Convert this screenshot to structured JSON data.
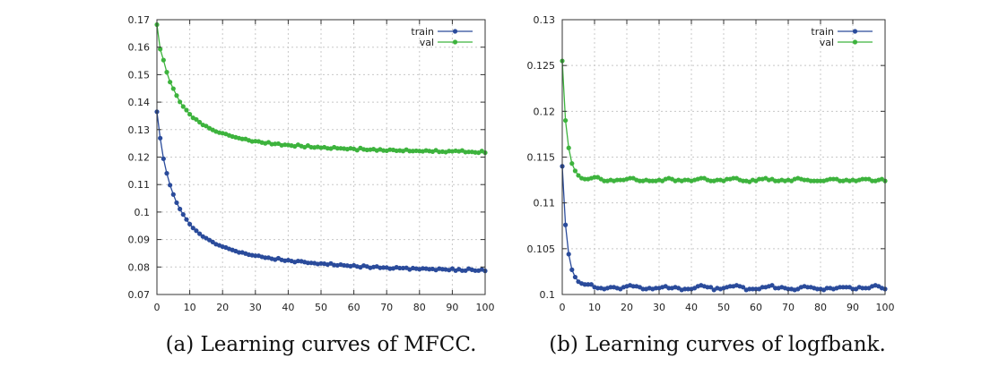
{
  "colors": {
    "train": "#2a4b9b",
    "val": "#3db33d"
  },
  "chart_data": [
    {
      "type": "line",
      "title": "",
      "caption": "(a) Learning curves of MFCC.",
      "xlabel": "",
      "ylabel": "",
      "xlim": [
        0,
        100
      ],
      "ylim": [
        0.07,
        0.17
      ],
      "xticks": [
        0,
        10,
        20,
        30,
        40,
        50,
        60,
        70,
        80,
        90,
        100
      ],
      "xtick_labels": [
        "0",
        "10",
        "20",
        "30",
        "40",
        "50",
        "60",
        "70",
        "80",
        "90",
        "100"
      ],
      "yticks": [
        0.07,
        0.08,
        0.09,
        0.1,
        0.11,
        0.12,
        0.13,
        0.14,
        0.15,
        0.16,
        0.17
      ],
      "ytick_labels": [
        "0.07",
        "0.08",
        "0.09",
        "0.1",
        "0.11",
        "0.12",
        "0.13",
        "0.14",
        "0.15",
        "0.16",
        "0.17"
      ],
      "grid": true,
      "legend_position": "top-right",
      "series": [
        {
          "name": "train",
          "x": [
            0,
            1,
            2,
            3,
            4,
            5,
            6,
            7,
            8,
            9,
            10,
            11,
            12,
            13,
            14,
            15,
            16,
            17,
            18,
            19,
            20,
            21,
            22,
            23,
            24,
            25,
            26,
            27,
            28,
            29,
            30,
            31,
            32,
            33,
            34,
            35,
            36,
            37,
            38,
            39,
            40,
            41,
            42,
            43,
            44,
            45,
            46,
            47,
            48,
            49,
            50,
            51,
            52,
            53,
            54,
            55,
            56,
            57,
            58,
            59,
            60,
            61,
            62,
            63,
            64,
            65,
            66,
            67,
            68,
            69,
            70,
            71,
            72,
            73,
            74,
            75,
            76,
            77,
            78,
            79,
            80,
            81,
            82,
            83,
            84,
            85,
            86,
            87,
            88,
            89,
            90,
            91,
            92,
            93,
            94,
            95,
            96,
            97,
            98,
            99,
            100
          ],
          "values": [
            0.1365,
            0.1269,
            0.1194,
            0.1141,
            0.1098,
            0.1064,
            0.1034,
            0.1011,
            0.0991,
            0.0973,
            0.0956,
            0.0942,
            0.0932,
            0.0921,
            0.0911,
            0.0905,
            0.0898,
            0.0891,
            0.0883,
            0.0879,
            0.0874,
            0.0871,
            0.0866,
            0.0862,
            0.0858,
            0.0853,
            0.0853,
            0.0849,
            0.0845,
            0.0843,
            0.0841,
            0.0841,
            0.0837,
            0.0834,
            0.0834,
            0.083,
            0.0827,
            0.0832,
            0.0826,
            0.0823,
            0.0825,
            0.0822,
            0.0818,
            0.0822,
            0.0821,
            0.0818,
            0.0815,
            0.0815,
            0.0814,
            0.0811,
            0.0813,
            0.0812,
            0.0809,
            0.0813,
            0.0807,
            0.0806,
            0.0809,
            0.0806,
            0.0805,
            0.0803,
            0.0806,
            0.0802,
            0.0799,
            0.0805,
            0.0802,
            0.0797,
            0.08,
            0.0802,
            0.0797,
            0.0798,
            0.0798,
            0.0794,
            0.0795,
            0.0799,
            0.0796,
            0.0796,
            0.0797,
            0.0791,
            0.0796,
            0.0794,
            0.0792,
            0.0795,
            0.0794,
            0.0792,
            0.0793,
            0.0789,
            0.0794,
            0.0792,
            0.0791,
            0.0789,
            0.0794,
            0.0787,
            0.0792,
            0.0787,
            0.0787,
            0.0794,
            0.079,
            0.0787,
            0.0787,
            0.0791,
            0.0786
          ]
        },
        {
          "name": "val",
          "x": [
            0,
            1,
            2,
            3,
            4,
            5,
            6,
            7,
            8,
            9,
            10,
            11,
            12,
            13,
            14,
            15,
            16,
            17,
            18,
            19,
            20,
            21,
            22,
            23,
            24,
            25,
            26,
            27,
            28,
            29,
            30,
            31,
            32,
            33,
            34,
            35,
            36,
            37,
            38,
            39,
            40,
            41,
            42,
            43,
            44,
            45,
            46,
            47,
            48,
            49,
            50,
            51,
            52,
            53,
            54,
            55,
            56,
            57,
            58,
            59,
            60,
            61,
            62,
            63,
            64,
            65,
            66,
            67,
            68,
            69,
            70,
            71,
            72,
            73,
            74,
            75,
            76,
            77,
            78,
            79,
            80,
            81,
            82,
            83,
            84,
            85,
            86,
            87,
            88,
            89,
            90,
            91,
            92,
            93,
            94,
            95,
            96,
            97,
            98,
            99,
            100
          ],
          "values": [
            0.1682,
            0.1593,
            0.1553,
            0.1509,
            0.1473,
            0.1449,
            0.1424,
            0.1401,
            0.1384,
            0.1371,
            0.1356,
            0.1343,
            0.1337,
            0.1327,
            0.1317,
            0.1313,
            0.1305,
            0.1299,
            0.1293,
            0.1289,
            0.1287,
            0.1284,
            0.1279,
            0.1275,
            0.1272,
            0.1269,
            0.1266,
            0.1266,
            0.1261,
            0.1257,
            0.1258,
            0.1257,
            0.1253,
            0.125,
            0.1254,
            0.1247,
            0.1248,
            0.1249,
            0.1243,
            0.1245,
            0.1244,
            0.1242,
            0.1239,
            0.1245,
            0.124,
            0.1236,
            0.1242,
            0.1236,
            0.1235,
            0.1237,
            0.1234,
            0.1236,
            0.1232,
            0.1231,
            0.1236,
            0.1232,
            0.1232,
            0.1231,
            0.1229,
            0.1232,
            0.123,
            0.1225,
            0.1233,
            0.1228,
            0.1226,
            0.1227,
            0.1229,
            0.1224,
            0.1228,
            0.1224,
            0.1223,
            0.1227,
            0.1226,
            0.1223,
            0.1224,
            0.1222,
            0.1227,
            0.1222,
            0.1222,
            0.1223,
            0.1222,
            0.1221,
            0.1224,
            0.1222,
            0.122,
            0.1225,
            0.1219,
            0.122,
            0.1218,
            0.1222,
            0.1221,
            0.1223,
            0.1221,
            0.1224,
            0.1218,
            0.1219,
            0.1219,
            0.1217,
            0.1216,
            0.1222,
            0.1216
          ]
        }
      ]
    },
    {
      "type": "line",
      "title": "",
      "caption": "(b) Learning curves of logfbank.",
      "xlabel": "",
      "ylabel": "",
      "xlim": [
        0,
        100
      ],
      "ylim": [
        0.1,
        0.13
      ],
      "xticks": [
        0,
        10,
        20,
        30,
        40,
        50,
        60,
        70,
        80,
        90,
        100
      ],
      "xtick_labels": [
        "0",
        "10",
        "20",
        "30",
        "40",
        "50",
        "60",
        "70",
        "80",
        "90",
        "100"
      ],
      "yticks": [
        0.1,
        0.105,
        0.11,
        0.115,
        0.12,
        0.125,
        0.13
      ],
      "ytick_labels": [
        "0.1",
        "0.105",
        "0.11",
        "0.115",
        "0.12",
        "0.125",
        "0.13"
      ],
      "grid": true,
      "legend_position": "top-right",
      "series": [
        {
          "name": "train",
          "x": [
            0,
            1,
            2,
            3,
            4,
            5,
            6,
            7,
            8,
            9,
            10,
            11,
            12,
            13,
            14,
            15,
            16,
            17,
            18,
            19,
            20,
            21,
            22,
            23,
            24,
            25,
            26,
            27,
            28,
            29,
            30,
            31,
            32,
            33,
            34,
            35,
            36,
            37,
            38,
            39,
            40,
            41,
            42,
            43,
            44,
            45,
            46,
            47,
            48,
            49,
            50,
            51,
            52,
            53,
            54,
            55,
            56,
            57,
            58,
            59,
            60,
            61,
            62,
            63,
            64,
            65,
            66,
            67,
            68,
            69,
            70,
            71,
            72,
            73,
            74,
            75,
            76,
            77,
            78,
            79,
            80,
            81,
            82,
            83,
            84,
            85,
            86,
            87,
            88,
            89,
            90,
            91,
            92,
            93,
            94,
            95,
            96,
            97,
            98,
            99,
            100
          ],
          "values": [
            0.114,
            0.1076,
            0.1044,
            0.1027,
            0.1019,
            0.1014,
            0.1012,
            0.1011,
            0.1011,
            0.1011,
            0.1008,
            0.1007,
            0.1007,
            0.1006,
            0.1007,
            0.1008,
            0.1008,
            0.1007,
            0.1006,
            0.1008,
            0.1009,
            0.101,
            0.1009,
            0.1009,
            0.1008,
            0.1006,
            0.1006,
            0.1007,
            0.1006,
            0.1007,
            0.1007,
            0.1008,
            0.1009,
            0.1007,
            0.1007,
            0.1008,
            0.1007,
            0.1005,
            0.1006,
            0.1006,
            0.1006,
            0.1007,
            0.1009,
            0.101,
            0.1009,
            0.1008,
            0.1008,
            0.1005,
            0.1007,
            0.1006,
            0.1007,
            0.1008,
            0.1009,
            0.1009,
            0.101,
            0.1009,
            0.1008,
            0.1005,
            0.1006,
            0.1006,
            0.1006,
            0.1006,
            0.1008,
            0.1008,
            0.1009,
            0.101,
            0.1007,
            0.1007,
            0.1008,
            0.1007,
            0.1006,
            0.1006,
            0.1005,
            0.1006,
            0.1008,
            0.1009,
            0.1008,
            0.1008,
            0.1007,
            0.1006,
            0.1006,
            0.1005,
            0.1007,
            0.1007,
            0.1006,
            0.1007,
            0.1008,
            0.1008,
            0.1008,
            0.1008,
            0.1006,
            0.1006,
            0.1008,
            0.1007,
            0.1007,
            0.1007,
            0.1009,
            0.101,
            0.1009,
            0.1007,
            0.1006
          ]
        },
        {
          "name": "val",
          "x": [
            0,
            1,
            2,
            3,
            4,
            5,
            6,
            7,
            8,
            9,
            10,
            11,
            12,
            13,
            14,
            15,
            16,
            17,
            18,
            19,
            20,
            21,
            22,
            23,
            24,
            25,
            26,
            27,
            28,
            29,
            30,
            31,
            32,
            33,
            34,
            35,
            36,
            37,
            38,
            39,
            40,
            41,
            42,
            43,
            44,
            45,
            46,
            47,
            48,
            49,
            50,
            51,
            52,
            53,
            54,
            55,
            56,
            57,
            58,
            59,
            60,
            61,
            62,
            63,
            64,
            65,
            66,
            67,
            68,
            69,
            70,
            71,
            72,
            73,
            74,
            75,
            76,
            77,
            78,
            79,
            80,
            81,
            82,
            83,
            84,
            85,
            86,
            87,
            88,
            89,
            90,
            91,
            92,
            93,
            94,
            95,
            96,
            97,
            98,
            99,
            100
          ],
          "values": [
            0.1255,
            0.119,
            0.116,
            0.1143,
            0.1135,
            0.113,
            0.1127,
            0.1126,
            0.1126,
            0.1127,
            0.1128,
            0.1128,
            0.1126,
            0.1124,
            0.1124,
            0.1125,
            0.1124,
            0.1125,
            0.1125,
            0.1125,
            0.1126,
            0.1127,
            0.1127,
            0.1125,
            0.1124,
            0.1124,
            0.1125,
            0.1124,
            0.1124,
            0.1124,
            0.1125,
            0.1124,
            0.1126,
            0.1127,
            0.1126,
            0.1124,
            0.1125,
            0.1124,
            0.1125,
            0.1125,
            0.1124,
            0.1125,
            0.1126,
            0.1127,
            0.1127,
            0.1125,
            0.1124,
            0.1124,
            0.1125,
            0.1125,
            0.1124,
            0.1126,
            0.1126,
            0.1127,
            0.1127,
            0.1125,
            0.1124,
            0.1124,
            0.1123,
            0.1125,
            0.1124,
            0.1126,
            0.1126,
            0.1127,
            0.1125,
            0.1126,
            0.1124,
            0.1124,
            0.1125,
            0.1124,
            0.1125,
            0.1124,
            0.1126,
            0.1127,
            0.1126,
            0.1125,
            0.1125,
            0.1124,
            0.1124,
            0.1124,
            0.1124,
            0.1124,
            0.1125,
            0.1126,
            0.1126,
            0.1126,
            0.1124,
            0.1124,
            0.1125,
            0.1124,
            0.1125,
            0.1124,
            0.1125,
            0.1126,
            0.1126,
            0.1126,
            0.1124,
            0.1124,
            0.1125,
            0.1126,
            0.1124
          ]
        }
      ]
    }
  ]
}
